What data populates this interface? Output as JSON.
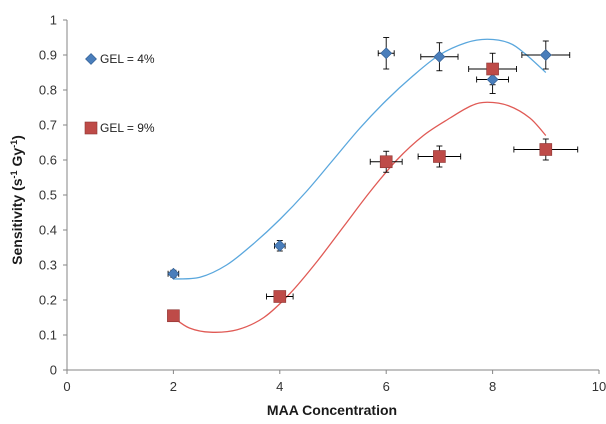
{
  "chart_data": {
    "type": "scatter",
    "title": "",
    "xlabel": "MAA Concentration",
    "ylabel_main": "Sensitivity (s",
    "ylabel_sup1": "-1",
    "ylabel_mid": " Gy",
    "ylabel_sup2": "-1",
    "ylabel_end": ")",
    "xlim": [
      0,
      10
    ],
    "ylim": [
      0,
      1
    ],
    "x_ticks": [
      0,
      2,
      4,
      6,
      8,
      10
    ],
    "y_ticks": [
      0,
      0.1,
      0.2,
      0.3,
      0.4,
      0.5,
      0.6,
      0.7,
      0.8,
      0.9,
      1
    ],
    "grid": false,
    "legend_placement": "left",
    "series": [
      {
        "name": "GEL = 4%",
        "marker": "diamond",
        "color": "#4a7ebb",
        "trend_color": "#5aa7dd",
        "points": [
          {
            "x": 2,
            "y": 0.275,
            "yerr": 0.01,
            "xerr": 0.1
          },
          {
            "x": 4,
            "y": 0.355,
            "yerr": 0.015,
            "xerr": 0.1
          },
          {
            "x": 6,
            "y": 0.905,
            "yerr": 0.045,
            "xerr": 0.15
          },
          {
            "x": 7,
            "y": 0.895,
            "yerr": 0.04,
            "xerr": 0.35
          },
          {
            "x": 8,
            "y": 0.83,
            "yerr": 0.04,
            "xerr": 0.3
          },
          {
            "x": 9,
            "y": 0.9,
            "yerr": 0.04,
            "xerr": 0.45
          }
        ],
        "trend": [
          [
            2,
            0.26
          ],
          [
            2.5,
            0.265
          ],
          [
            3,
            0.3
          ],
          [
            3.5,
            0.36
          ],
          [
            4,
            0.43
          ],
          [
            4.5,
            0.51
          ],
          [
            5,
            0.6
          ],
          [
            5.5,
            0.69
          ],
          [
            6,
            0.77
          ],
          [
            6.5,
            0.84
          ],
          [
            7,
            0.9
          ],
          [
            7.5,
            0.935
          ],
          [
            7.9,
            0.945
          ],
          [
            8.3,
            0.935
          ],
          [
            8.6,
            0.905
          ],
          [
            9,
            0.85
          ]
        ]
      },
      {
        "name": "GEL = 9%",
        "marker": "square",
        "color": "#be4b48",
        "trend_color": "#e05a55",
        "points": [
          {
            "x": 2,
            "y": 0.155,
            "yerr": 0.01,
            "xerr": 0.08
          },
          {
            "x": 4,
            "y": 0.21,
            "yerr": 0.01,
            "xerr": 0.25
          },
          {
            "x": 6,
            "y": 0.595,
            "yerr": 0.03,
            "xerr": 0.3
          },
          {
            "x": 7,
            "y": 0.61,
            "yerr": 0.03,
            "xerr": 0.4
          },
          {
            "x": 8,
            "y": 0.86,
            "yerr": 0.045,
            "xerr": 0.45
          },
          {
            "x": 9,
            "y": 0.63,
            "yerr": 0.03,
            "xerr": 0.6
          }
        ],
        "trend": [
          [
            2,
            0.15
          ],
          [
            2.3,
            0.12
          ],
          [
            2.7,
            0.108
          ],
          [
            3.2,
            0.115
          ],
          [
            3.7,
            0.15
          ],
          [
            4.2,
            0.22
          ],
          [
            4.7,
            0.31
          ],
          [
            5.2,
            0.41
          ],
          [
            5.7,
            0.51
          ],
          [
            6.2,
            0.6
          ],
          [
            6.7,
            0.67
          ],
          [
            7.2,
            0.72
          ],
          [
            7.6,
            0.755
          ],
          [
            7.9,
            0.765
          ],
          [
            8.3,
            0.755
          ],
          [
            8.7,
            0.72
          ],
          [
            9,
            0.67
          ]
        ]
      }
    ]
  }
}
